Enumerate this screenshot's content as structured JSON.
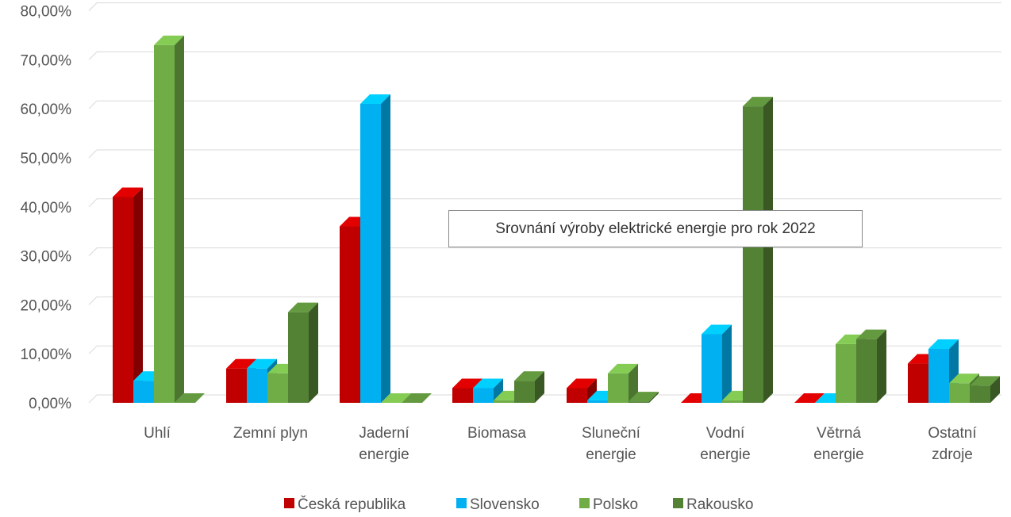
{
  "chart_data": {
    "type": "bar",
    "title": "Srovnání výroby elektrické energie pro rok 2022",
    "xlabel": "",
    "ylabel": "",
    "ylim": [
      0,
      80
    ],
    "y_ticks": [
      "0,00%",
      "10,00%",
      "20,00%",
      "30,00%",
      "40,00%",
      "50,00%",
      "60,00%",
      "70,00%",
      "80,00%"
    ],
    "grid": true,
    "legend_position": "bottom",
    "categories": [
      [
        "Uhlí"
      ],
      [
        "Zemní plyn"
      ],
      [
        "Jaderní",
        "energie"
      ],
      [
        "Biomasa"
      ],
      [
        "Sluneční",
        "energie"
      ],
      [
        "Vodní",
        "energie"
      ],
      [
        "Větrná",
        "energie"
      ],
      [
        "Ostatní",
        "zdroje"
      ]
    ],
    "series": [
      {
        "name": "Česká republika",
        "color": "#c00000",
        "values": [
          42,
          7,
          36,
          3,
          3,
          0,
          0,
          8
        ]
      },
      {
        "name": "Slovensko",
        "color": "#00b0f0",
        "values": [
          4.5,
          7,
          61,
          3,
          0.5,
          14,
          0,
          11
        ]
      },
      {
        "name": "Polsko",
        "color": "#70ad47",
        "values": [
          73,
          6,
          0,
          0.5,
          6,
          0.5,
          12,
          4
        ]
      },
      {
        "name": "Rakousko",
        "color": "#548235",
        "values": [
          0,
          18.5,
          0,
          4.5,
          0.3,
          60.5,
          13,
          3.5
        ]
      }
    ]
  }
}
